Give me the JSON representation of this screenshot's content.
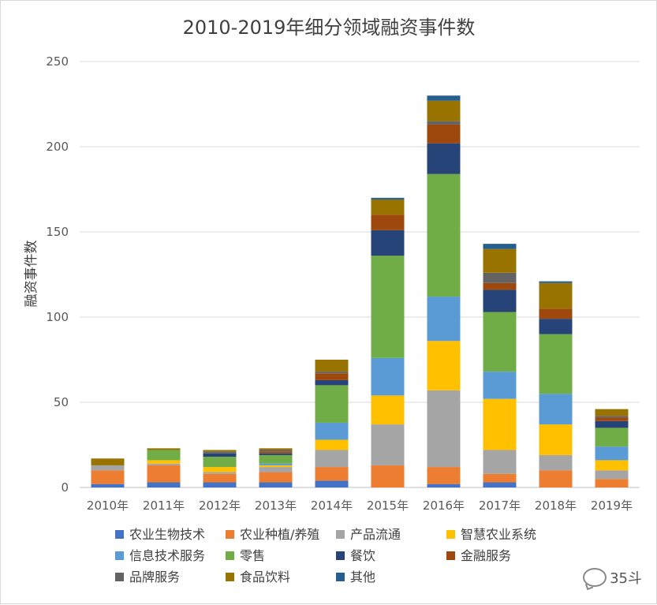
{
  "chart_data": {
    "type": "bar",
    "stacked": true,
    "title": "2010-2019年细分领域融资事件数",
    "xlabel": "",
    "ylabel": "融资事件数",
    "ylim": [
      0,
      250
    ],
    "yticks": [
      0,
      50,
      100,
      150,
      200,
      250
    ],
    "grid": true,
    "legend_position": "bottom",
    "categories": [
      "2010年",
      "2011年",
      "2012年",
      "2013年",
      "2014年",
      "2015年",
      "2016年",
      "2017年",
      "2018年",
      "2019年"
    ],
    "series": [
      {
        "name": "农业生物技术",
        "color": "#4472C4",
        "values": [
          2,
          3,
          3,
          3,
          4,
          0,
          2,
          3,
          0,
          0
        ]
      },
      {
        "name": "农业种植/养殖",
        "color": "#ED7D31",
        "values": [
          8,
          10,
          5,
          6,
          8,
          13,
          10,
          5,
          10,
          5
        ]
      },
      {
        "name": "产品流通",
        "color": "#A5A5A5",
        "values": [
          3,
          1,
          1,
          3,
          10,
          24,
          45,
          14,
          9,
          5
        ]
      },
      {
        "name": "智慧农业系统",
        "color": "#FFC000",
        "values": [
          0,
          2,
          3,
          1,
          6,
          17,
          29,
          30,
          18,
          6
        ]
      },
      {
        "name": "信息技术服务",
        "color": "#5B9BD5",
        "values": [
          0,
          0,
          0,
          1,
          10,
          22,
          26,
          16,
          18,
          8
        ]
      },
      {
        "name": "零售",
        "color": "#70AD47",
        "values": [
          0,
          6,
          6,
          5,
          22,
          60,
          72,
          35,
          35,
          11
        ]
      },
      {
        "name": "餐饮",
        "color": "#264478",
        "values": [
          0,
          0,
          2,
          1,
          3,
          15,
          18,
          13,
          9,
          4
        ]
      },
      {
        "name": "金融服务",
        "color": "#9E480E",
        "values": [
          0,
          0,
          0,
          1,
          4,
          9,
          11,
          4,
          6,
          2
        ]
      },
      {
        "name": "品牌服务",
        "color": "#636363",
        "values": [
          0,
          0,
          1,
          1,
          1,
          0,
          2,
          6,
          0,
          1
        ]
      },
      {
        "name": "食品饮料",
        "color": "#997300",
        "values": [
          4,
          1,
          1,
          1,
          7,
          9,
          12,
          14,
          15,
          4
        ]
      },
      {
        "name": "其他",
        "color": "#255E91",
        "values": [
          0,
          0,
          0,
          0,
          0,
          1,
          3,
          3,
          1,
          0
        ]
      }
    ]
  },
  "watermark": {
    "text": "35斗",
    "icon": "wechat-bubble-icon"
  }
}
